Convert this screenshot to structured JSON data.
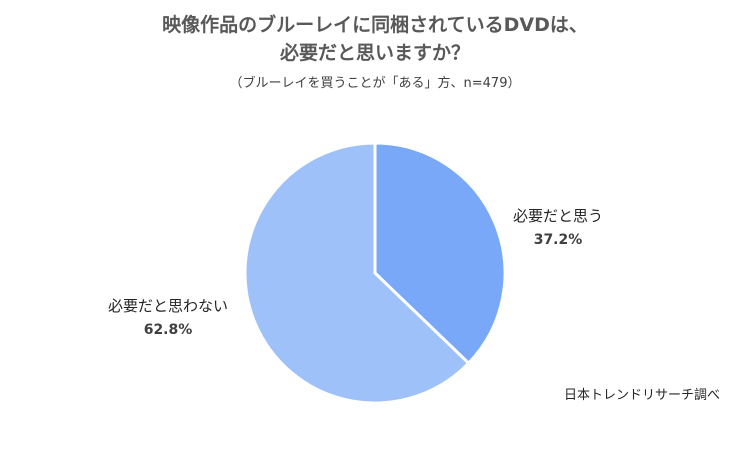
{
  "title_line1": "映像作品のブルーレイに同梱されているDVDは、",
  "title_line2": "必要だと思いますか？",
  "subtitle": "（ブルーレイを買うことが「ある」方、n=479）",
  "source": "日本トレンドリサーチ調べ",
  "chart_data": {
    "type": "pie",
    "title": "映像作品のブルーレイに同梱されているDVDは、必要だと思いますか？",
    "subtitle": "（ブルーレイを買うことが「ある」方、n=479）",
    "slices": [
      {
        "label": "必要だと思う",
        "value": 37.2,
        "value_label": "37.2%",
        "color": "#78a8f7"
      },
      {
        "label": "必要だと思わない",
        "value": 62.8,
        "value_label": "62.8%",
        "color": "#9fc1fa"
      }
    ],
    "start_angle_deg": 0,
    "direction": "clockwise",
    "legend": "none"
  }
}
